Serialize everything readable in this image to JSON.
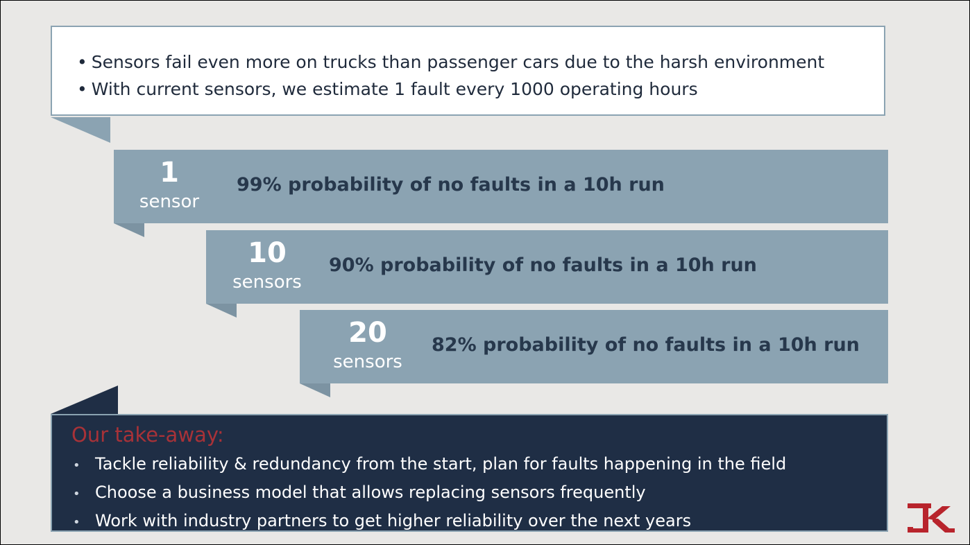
{
  "intro": {
    "bullets": [
      "Sensors fail even more on trucks than passenger cars due to the harsh environment",
      "With current sensors, we estimate 1 fault every 1000 operating hours"
    ]
  },
  "rows": [
    {
      "count": "1",
      "unit": "sensor",
      "text": "99% probability of no faults in a 10h run"
    },
    {
      "count": "10",
      "unit": "sensors",
      "text": "90% probability of no faults in a 10h run"
    },
    {
      "count": "20",
      "unit": "sensors",
      "text": "82% probability of no faults in a 10h run"
    }
  ],
  "takeaway": {
    "title": "Our take-away:",
    "items": [
      "Tackle reliability & redundancy from the start, plan for faults happening in the field",
      "Choose a business model that allows replacing sensors frequently",
      "Work with industry partners to get higher reliability over the next years"
    ]
  },
  "colors": {
    "band": "#8ba3b2",
    "dark_box": "#1f2e45",
    "accent_red": "#a83238",
    "text_dark": "#27384c"
  },
  "logo": {
    "icon": "company-logo-icon"
  }
}
